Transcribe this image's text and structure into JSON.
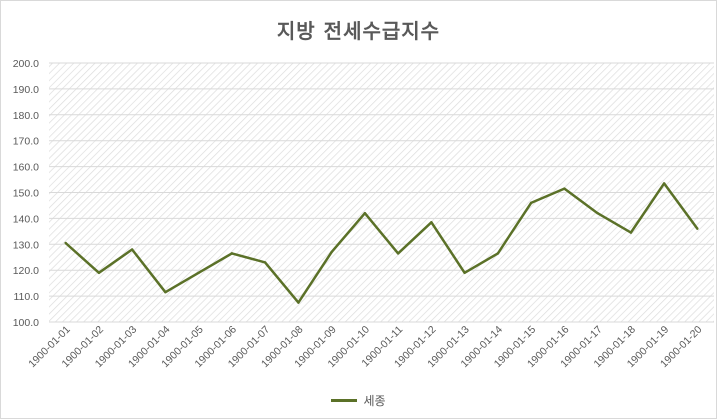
{
  "chart_data": {
    "type": "line",
    "title": "지방 전세수급지수",
    "x": [
      "1900-01-01",
      "1900-01-02",
      "1900-01-03",
      "1900-01-04",
      "1900-01-05",
      "1900-01-06",
      "1900-01-07",
      "1900-01-08",
      "1900-01-09",
      "1900-01-10",
      "1900-01-11",
      "1900-01-12",
      "1900-01-13",
      "1900-01-14",
      "1900-01-15",
      "1900-01-16",
      "1900-01-17",
      "1900-01-18",
      "1900-01-19",
      "1900-01-20"
    ],
    "series": [
      {
        "name": "세종",
        "color": "#5b7128",
        "values": [
          130.5,
          119,
          128,
          111.5,
          119,
          126.5,
          123,
          107.5,
          127,
          142,
          126.5,
          138.5,
          119,
          126.5,
          146,
          151.5,
          142,
          134.5,
          153.5,
          136
        ]
      }
    ],
    "ylim": [
      100,
      200
    ],
    "yticks": [
      "100.0",
      "110.0",
      "120.0",
      "130.0",
      "140.0",
      "150.0",
      "160.0",
      "170.0",
      "180.0",
      "190.0",
      "200.0"
    ],
    "grid": true,
    "legend_position": "bottom"
  }
}
